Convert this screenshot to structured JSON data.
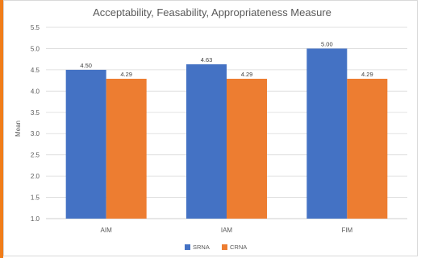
{
  "chart_data": {
    "type": "bar",
    "title": "Acceptability, Feasability, Appropriateness Measure",
    "xlabel": "",
    "ylabel": "Mean",
    "ylim": [
      1.0,
      5.5
    ],
    "yticks": [
      "1.0",
      "1.5",
      "2.0",
      "2.5",
      "3.0",
      "3.5",
      "4.0",
      "4.5",
      "5.0",
      "5.5"
    ],
    "categories": [
      "AIM",
      "IAM",
      "FIM"
    ],
    "series": [
      {
        "name": "SRNA",
        "color": "#4472c4",
        "values": [
          4.5,
          4.63,
          5.0
        ],
        "labels": [
          "4.50",
          "4.63",
          "5.00"
        ]
      },
      {
        "name": "CRNA",
        "color": "#ed7d31",
        "values": [
          4.29,
          4.29,
          4.29
        ],
        "labels": [
          "4.29",
          "4.29",
          "4.29"
        ]
      }
    ],
    "grid": true,
    "legend_position": "bottom"
  }
}
